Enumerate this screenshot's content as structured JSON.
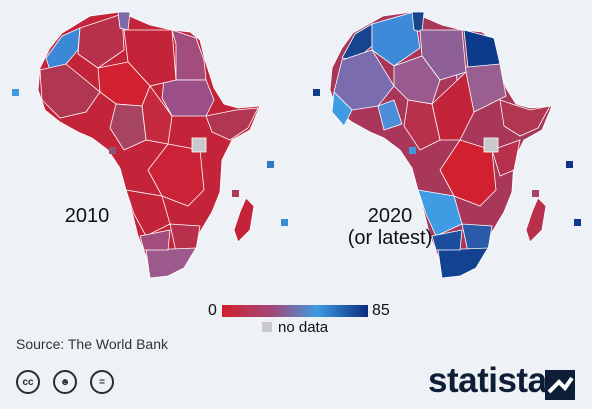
{
  "maps": [
    {
      "label": "2010",
      "fill_scheme": "mostly-red",
      "islands": [
        {
          "name": "cape-verde",
          "value": 42
        },
        {
          "name": "sao-tome",
          "value": 18
        },
        {
          "name": "comoros",
          "value": 10
        },
        {
          "name": "seychelles",
          "value": 55
        },
        {
          "name": "mauritius",
          "value": 48
        }
      ]
    },
    {
      "label": "2020\n(or latest)",
      "fill_scheme": "mixed-blue",
      "islands": [
        {
          "name": "cape-verde",
          "value": 80
        },
        {
          "name": "sao-tome",
          "value": 42
        },
        {
          "name": "comoros",
          "value": 12
        },
        {
          "name": "seychelles",
          "value": 82
        },
        {
          "name": "mauritius",
          "value": 80
        }
      ]
    }
  ],
  "legend": {
    "min_label": "0",
    "max_label": "85",
    "min_value": 0,
    "max_value": 85,
    "no_data_label": "no data",
    "colors": {
      "low": "#d1202f",
      "mid": "#3f9be2",
      "high": "#0a2d7e",
      "no_data": "#c9c9cc"
    }
  },
  "source": "Source: The World Bank",
  "brand": "statista",
  "license_icons": [
    "cc-icon",
    "attribution-icon",
    "no-derivatives-icon"
  ]
}
